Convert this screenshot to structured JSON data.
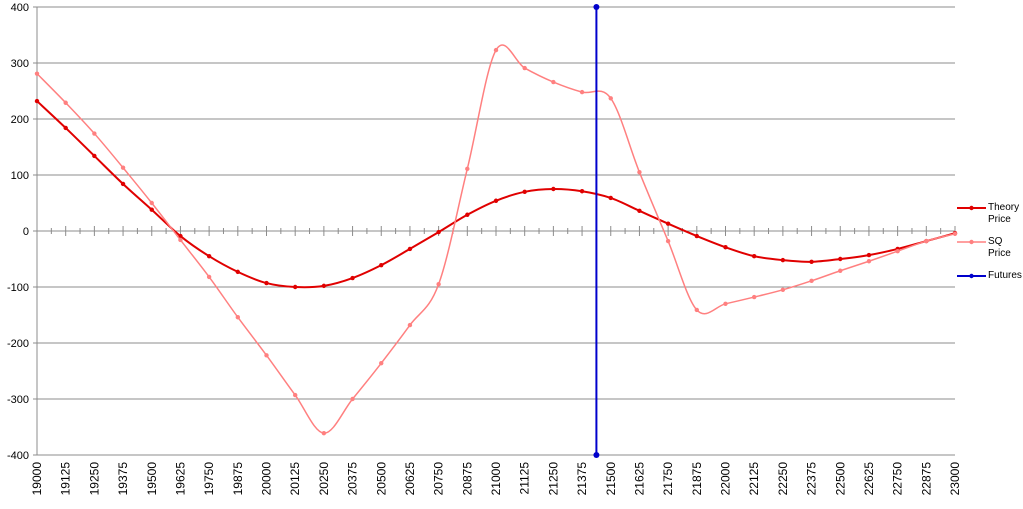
{
  "chart_data": {
    "type": "line",
    "x": [
      19000,
      19125,
      19250,
      19375,
      19500,
      19625,
      19750,
      19875,
      20000,
      20125,
      20250,
      20375,
      20500,
      20625,
      20750,
      20875,
      21000,
      21125,
      21250,
      21375,
      21500,
      21625,
      21750,
      21875,
      22000,
      22125,
      22250,
      22375,
      22500,
      22625,
      22750,
      22875,
      23000
    ],
    "series": [
      {
        "name": "Theory Price",
        "color": "#e00000",
        "values": [
          232,
          184,
          134,
          84,
          38,
          -9,
          -45,
          -73,
          -93,
          -100,
          -98,
          -84,
          -61,
          -32,
          -2,
          29,
          54,
          70,
          75,
          71,
          59,
          36,
          13,
          -9,
          -29,
          -45,
          -52,
          -55,
          -50,
          -43,
          -32,
          -18,
          -4
        ]
      },
      {
        "name": "SQ Price",
        "color": "#ff8080",
        "values": [
          281,
          229,
          174,
          113,
          50,
          -16,
          -82,
          -154,
          -222,
          -293,
          -361,
          -300,
          -236,
          -168,
          -95,
          111,
          323,
          291,
          266,
          248,
          237,
          105,
          -18,
          -141,
          -130,
          -118,
          -105,
          -89,
          -71,
          -54,
          -36,
          -18,
          -5
        ]
      },
      {
        "name": "Futures",
        "color": "#0000cc",
        "x": [
          21437.5,
          21437.5
        ],
        "values": [
          400,
          -400
        ]
      }
    ],
    "xlim": [
      19000,
      23000
    ],
    "xticks": [
      19000,
      19125,
      19250,
      19375,
      19500,
      19625,
      19750,
      19875,
      20000,
      20125,
      20250,
      20375,
      20500,
      20625,
      20750,
      20875,
      21000,
      21125,
      21250,
      21375,
      21500,
      21625,
      21750,
      21875,
      22000,
      22125,
      22250,
      22375,
      22500,
      22625,
      22750,
      22875,
      23000
    ],
    "ylim": [
      -400,
      400
    ],
    "yticks": [
      -400,
      -300,
      -200,
      -100,
      0,
      100,
      200,
      300,
      400
    ],
    "grid": true,
    "legend": "right"
  }
}
